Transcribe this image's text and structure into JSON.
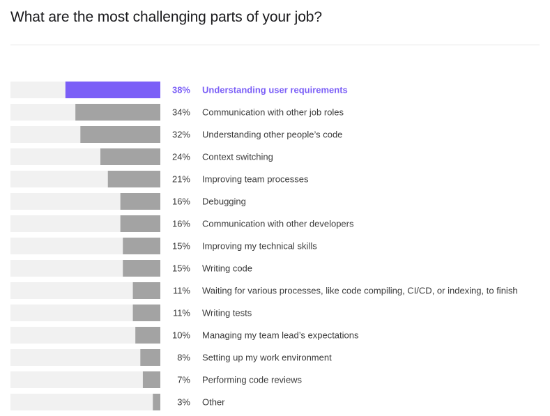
{
  "page": {
    "title": "What are the most challenging parts of your job?"
  },
  "colors": {
    "track": "#f1f1f1",
    "bar": "#a3a3a3",
    "highlight": "#7b5ff7",
    "text": "#3a3a3a"
  },
  "chart_data": {
    "type": "bar",
    "orientation": "horizontal",
    "title": "What are the most challenging parts of your job?",
    "value_format": "percent",
    "xlim": [
      0,
      100
    ],
    "grid": false,
    "legend": "none",
    "highlighted_index": 0,
    "categories": [
      "Understanding user requirements",
      "Communication with other job roles",
      "Understanding other people’s code",
      "Context switching",
      "Improving team processes",
      "Debugging",
      "Communication with other developers",
      "Improving my technical skills",
      "Writing code",
      "Waiting for various processes, like code compiling, CI/CD, or indexing, to finish",
      "Writing tests",
      "Managing my team lead’s expectations",
      "Setting up my work environment",
      "Performing code reviews",
      "Other"
    ],
    "values": [
      38,
      34,
      32,
      24,
      21,
      16,
      16,
      15,
      15,
      11,
      11,
      10,
      8,
      7,
      3
    ],
    "value_labels": [
      "38%",
      "34%",
      "32%",
      "24%",
      "21%",
      "16%",
      "16%",
      "15%",
      "15%",
      "11%",
      "11%",
      "10%",
      "8%",
      "7%",
      "3%"
    ]
  }
}
